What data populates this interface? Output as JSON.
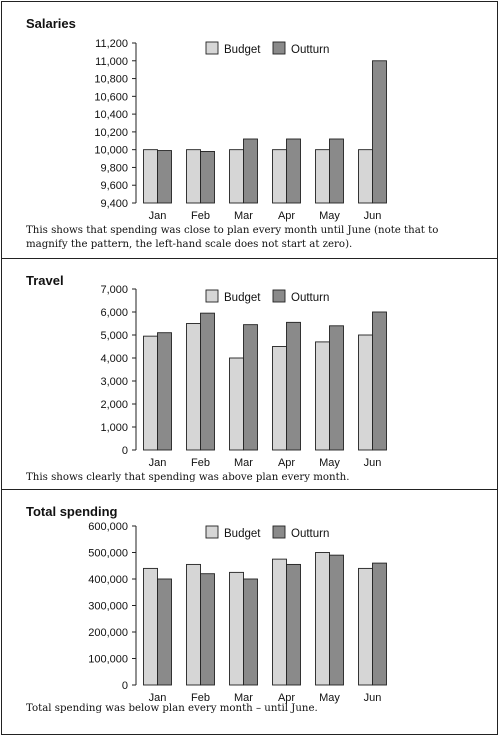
{
  "colors": {
    "budget": "#d6d6d6",
    "outturn": "#8a8a8a",
    "axis": "#222222"
  },
  "chart_data": [
    {
      "type": "bar",
      "title": "Salaries",
      "categories": [
        "Jan",
        "Feb",
        "Mar",
        "Apr",
        "May",
        "Jun"
      ],
      "series": [
        {
          "name": "Budget",
          "values": [
            10000,
            10000,
            10000,
            10000,
            10000,
            10000
          ]
        },
        {
          "name": "Outturn",
          "values": [
            9990,
            9980,
            10120,
            10120,
            10120,
            11000
          ]
        }
      ],
      "ylim": [
        9400,
        11200
      ],
      "yticks": [
        "9,400",
        "9,600",
        "9,800",
        "10,000",
        "10,200",
        "10,400",
        "10,600",
        "10,800",
        "11,000",
        "11,200"
      ],
      "legend": "top-center",
      "grid": false,
      "caption": "This shows that spending was close to plan every month until June (note that to magnify the pattern, the left-hand scale does not start at zero)."
    },
    {
      "type": "bar",
      "title": "Travel",
      "categories": [
        "Jan",
        "Feb",
        "Mar",
        "Apr",
        "May",
        "Jun"
      ],
      "series": [
        {
          "name": "Budget",
          "values": [
            4950,
            5500,
            4000,
            4500,
            4700,
            5000
          ]
        },
        {
          "name": "Outturn",
          "values": [
            5100,
            5950,
            5450,
            5550,
            5400,
            6000
          ]
        }
      ],
      "ylim": [
        0,
        7000
      ],
      "yticks": [
        "0",
        "1,000",
        "2,000",
        "3,000",
        "4,000",
        "5,000",
        "6,000",
        "7,000"
      ],
      "legend": "top-center",
      "grid": false,
      "caption": "This shows clearly that spending was above plan every month."
    },
    {
      "type": "bar",
      "title": "Total spending",
      "categories": [
        "Jan",
        "Feb",
        "Mar",
        "Apr",
        "May",
        "Jun"
      ],
      "series": [
        {
          "name": "Budget",
          "values": [
            440000,
            455000,
            425000,
            475000,
            500000,
            440000
          ]
        },
        {
          "name": "Outturn",
          "values": [
            400000,
            420000,
            400000,
            455000,
            490000,
            460000
          ]
        }
      ],
      "ylim": [
        0,
        600000
      ],
      "yticks": [
        "0",
        "100,000",
        "200,000",
        "300,000",
        "400,000",
        "500,000",
        "600,000"
      ],
      "legend": "top-center",
      "grid": false,
      "caption": "Total spending was below plan every month – until June."
    }
  ]
}
